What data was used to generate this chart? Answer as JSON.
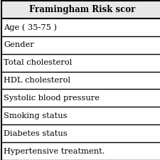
{
  "header": "Framingham Risk scor",
  "rows": [
    "Age ( 35-75 )",
    "Gender",
    "Total cholesterol",
    "HDL cholesterol",
    "Systolic blood pressure",
    "Smoking status",
    "Diabetes status",
    "Hypertensive treatment."
  ],
  "background_color": "#ffffff",
  "header_fontsize": 8.5,
  "row_fontsize": 8.2,
  "border_color": "#000000",
  "text_color": "#000000",
  "header_bg": "#e8e8e8"
}
